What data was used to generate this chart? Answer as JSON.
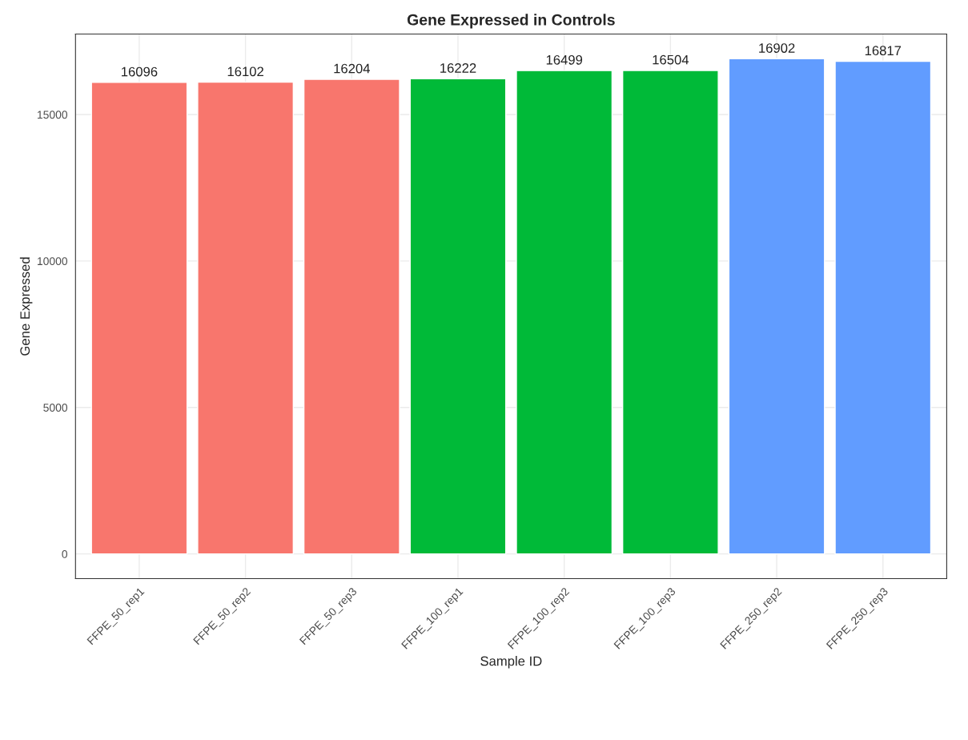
{
  "chart_data": {
    "type": "bar",
    "title": "Gene Expressed in Controls",
    "xlabel": "Sample ID",
    "ylabel": "Gene Expressed",
    "categories": [
      "FFPE_50_rep1",
      "FFPE_50_rep2",
      "FFPE_50_rep3",
      "FFPE_100_rep1",
      "FFPE_100_rep2",
      "FFPE_100_rep3",
      "FFPE_250_rep2",
      "FFPE_250_rep3"
    ],
    "values": [
      16096,
      16102,
      16204,
      16222,
      16499,
      16504,
      16902,
      16817
    ],
    "colors": [
      "#f8766d",
      "#f8766d",
      "#f8766d",
      "#00ba38",
      "#00ba38",
      "#00ba38",
      "#619cff",
      "#619cff"
    ],
    "ylim": [
      -845,
      17747
    ],
    "yticks": [
      0,
      5000,
      10000,
      15000
    ],
    "grid": true,
    "data_labels": true
  }
}
